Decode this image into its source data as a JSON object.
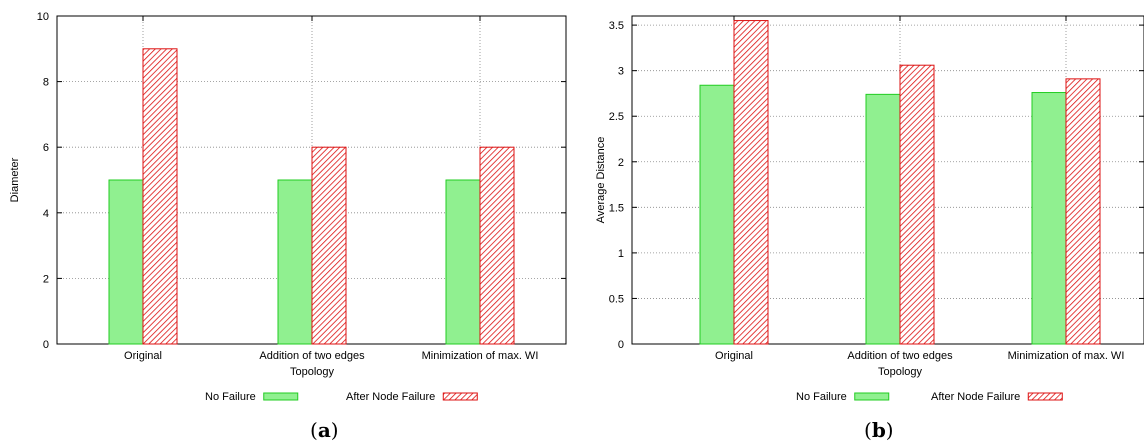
{
  "colors": {
    "no_failure_fill": "#90f090",
    "no_failure_stroke": "#22cc22",
    "after_failure_stroke": "#dd1111",
    "grid": "#888888"
  },
  "chart_data": [
    {
      "type": "bar",
      "panel": "a",
      "caption": "a",
      "xlabel": "Topology",
      "ylabel": "Diameter",
      "ylim": [
        0,
        10
      ],
      "yticks": [
        "0",
        "2",
        "4",
        "6",
        "8",
        "10"
      ],
      "grid": true,
      "legend_placement": "bottom",
      "categories": [
        "Original",
        "Addition of two edges",
        "Minimization of max. WI"
      ],
      "series": [
        {
          "name": "No Failure",
          "values": [
            5,
            5,
            5
          ]
        },
        {
          "name": "After Node Failure",
          "values": [
            9,
            6,
            6
          ]
        }
      ]
    },
    {
      "type": "bar",
      "panel": "b",
      "caption": "b",
      "xlabel": "Topology",
      "ylabel": "Average Distance",
      "ylim": [
        0,
        3.6
      ],
      "yticks": [
        "0",
        "0.5",
        "1",
        "1.5",
        "2",
        "2.5",
        "3",
        "3.5"
      ],
      "grid": true,
      "legend_placement": "bottom",
      "categories": [
        "Original",
        "Addition of two edges",
        "Minimization of max. WI"
      ],
      "series": [
        {
          "name": "No Failure",
          "values": [
            2.84,
            2.74,
            2.76
          ]
        },
        {
          "name": "After Node Failure",
          "values": [
            3.55,
            3.06,
            2.91
          ]
        }
      ]
    }
  ]
}
